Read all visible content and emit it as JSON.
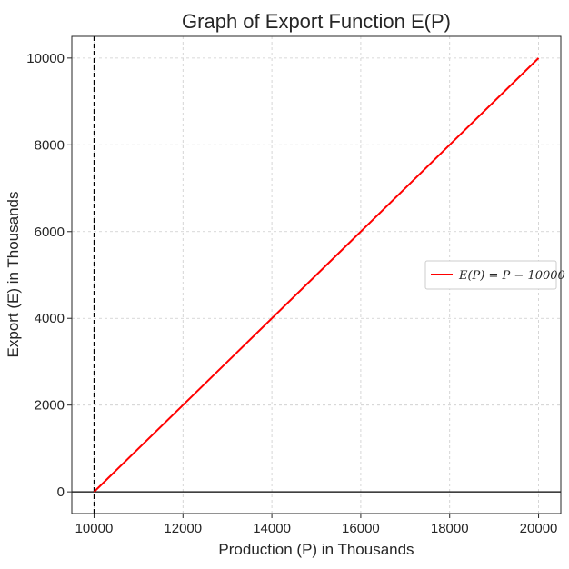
{
  "chart_data": {
    "type": "line",
    "title": "Graph of Export Function E(P)",
    "xlabel": "Production (P) in Thousands",
    "ylabel": "Export (E) in Thousands",
    "xlim": [
      9500,
      20500
    ],
    "ylim": [
      -500,
      10500
    ],
    "xticks": [
      10000,
      12000,
      14000,
      16000,
      18000,
      20000
    ],
    "yticks": [
      0,
      2000,
      4000,
      6000,
      8000,
      10000
    ],
    "grid": true,
    "legend_position": "center-right",
    "series": [
      {
        "name": "E(P) = P − 10000",
        "color": "#ff0000",
        "x": [
          10000,
          20000
        ],
        "y": [
          0,
          10000
        ]
      }
    ],
    "reference_lines": [
      {
        "orientation": "horizontal",
        "value": 0,
        "style": "solid",
        "color": "#000000"
      },
      {
        "orientation": "vertical",
        "value": 10000,
        "style": "dashed",
        "color": "#000000"
      }
    ]
  }
}
